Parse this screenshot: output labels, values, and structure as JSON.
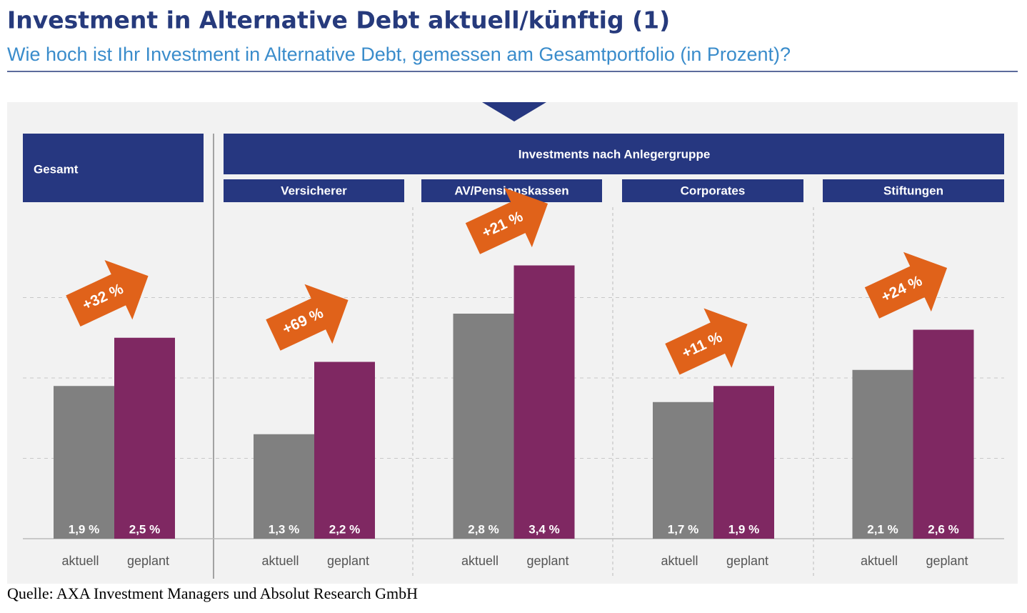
{
  "chart_data": {
    "type": "bar",
    "title": "Investment in Alternative Debt aktuell/künftig (1)",
    "subtitle": "Wie hoch ist Ihr Investment in Alternative Debt, gemessen am Gesamtportfolio (in Prozent)?",
    "group_header": "Investments nach Anlegergruppe",
    "categories": [
      "Gesamt",
      "Versicherer",
      "AV/Pensionskassen",
      "Corporates",
      "Stiftungen"
    ],
    "series": [
      {
        "name": "aktuell",
        "color": "#808080",
        "values": [
          1.9,
          1.3,
          2.8,
          1.7,
          2.1
        ],
        "value_labels": [
          "1,9 %",
          "1,3 %",
          "2,8 %",
          "1,7 %",
          "2,1 %"
        ]
      },
      {
        "name": "geplant",
        "color": "#7f2862",
        "values": [
          2.5,
          2.2,
          3.4,
          1.9,
          2.6
        ],
        "value_labels": [
          "2,5 %",
          "2,2 %",
          "3,4 %",
          "1,9 %",
          "2,6 %"
        ]
      }
    ],
    "change_labels": [
      "+32 %",
      "+69 %",
      "+21 %",
      "+11 %",
      "+24 %"
    ],
    "change_color": "#e0621a",
    "ylim": [
      0,
      4
    ],
    "yticks": [
      0,
      1,
      2,
      3
    ],
    "grid": true,
    "source": "Quelle: AXA Investment Managers und Absolut Research GmbH"
  }
}
